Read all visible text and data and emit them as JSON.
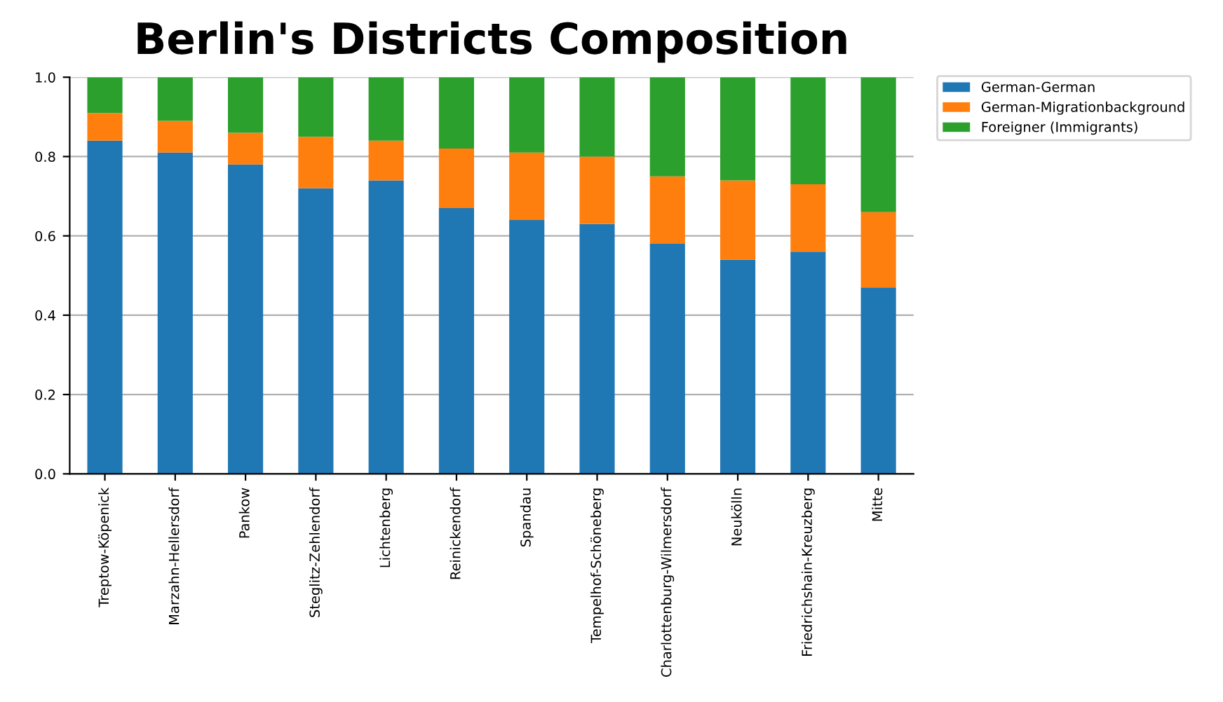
{
  "chart_data": {
    "type": "bar",
    "title": "Berlin's Districts Composition",
    "stacked": true,
    "categories": [
      "Treptow-Köpenick",
      "Marzahn-Hellersdorf",
      "Pankow",
      "Steglitz-Zehlendorf",
      "Lichtenberg",
      "Reinickendorf",
      "Spandau",
      "Tempelhof-Schöneberg",
      "Charlottenburg-Wilmersdorf",
      "Neukölln",
      "Friedrichshain-Kreuzberg",
      "Mitte"
    ],
    "series": [
      {
        "name": "German-German",
        "color": "#1f77b4",
        "values": [
          0.84,
          0.81,
          0.78,
          0.72,
          0.74,
          0.67,
          0.64,
          0.63,
          0.58,
          0.54,
          0.56,
          0.47
        ]
      },
      {
        "name": "German-Migrationbackground",
        "color": "#ff7f0e",
        "values": [
          0.07,
          0.08,
          0.08,
          0.13,
          0.1,
          0.15,
          0.17,
          0.17,
          0.17,
          0.2,
          0.17,
          0.19
        ]
      },
      {
        "name": "Foreigner (Immigrants)",
        "color": "#2ca02c",
        "values": [
          0.09,
          0.11,
          0.14,
          0.15,
          0.16,
          0.18,
          0.19,
          0.2,
          0.25,
          0.26,
          0.27,
          0.34
        ]
      }
    ],
    "ylim": [
      0,
      1.0
    ],
    "yticks": [
      {
        "value": 0,
        "label": "0.0"
      },
      {
        "value": 0.2,
        "label": "0.2"
      },
      {
        "value": 0.4,
        "label": "0.4"
      },
      {
        "value": 0.6,
        "label": "0.6"
      },
      {
        "value": 0.8,
        "label": "0.8"
      },
      {
        "value": 1.0,
        "label": "1.0"
      }
    ],
    "grid": "y",
    "legend": "top right"
  }
}
